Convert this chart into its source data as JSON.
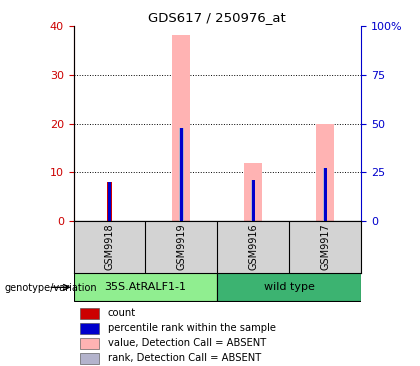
{
  "title": "GDS617 / 250976_at",
  "samples": [
    "GSM9918",
    "GSM9919",
    "GSM9916",
    "GSM9917"
  ],
  "ylim_left": [
    0,
    40
  ],
  "ylim_right": [
    0,
    100
  ],
  "yticks_left": [
    0,
    10,
    20,
    30,
    40
  ],
  "yticks_right": [
    0,
    25,
    50,
    75,
    100
  ],
  "yticklabels_right": [
    "0",
    "25",
    "50",
    "75",
    "100%"
  ],
  "count_values": [
    8.0,
    0,
    0,
    0
  ],
  "rank_values_pct": [
    20.0,
    47.5,
    21.25,
    27.5
  ],
  "value_absent": [
    0,
    38.0,
    12.0,
    20.0
  ],
  "rank_absent_pct": [
    0,
    47.5,
    21.25,
    27.5
  ],
  "color_count": "#cc0000",
  "color_rank": "#0000cc",
  "color_value_absent": "#ffb3b3",
  "color_rank_absent": "#b3b3cc",
  "group_colors_left": "#90ee90",
  "group_colors_right": "#3cb371",
  "legend_items": [
    {
      "label": "count",
      "color": "#cc0000"
    },
    {
      "label": "percentile rank within the sample",
      "color": "#0000cc"
    },
    {
      "label": "value, Detection Call = ABSENT",
      "color": "#ffb3b3"
    },
    {
      "label": "rank, Detection Call = ABSENT",
      "color": "#b3b3cc"
    }
  ],
  "left_axis_color": "#cc0000",
  "right_axis_color": "#0000cc",
  "background_label": "#d3d3d3",
  "thin_bar_width": 0.06,
  "wide_bar_width": 0.25
}
